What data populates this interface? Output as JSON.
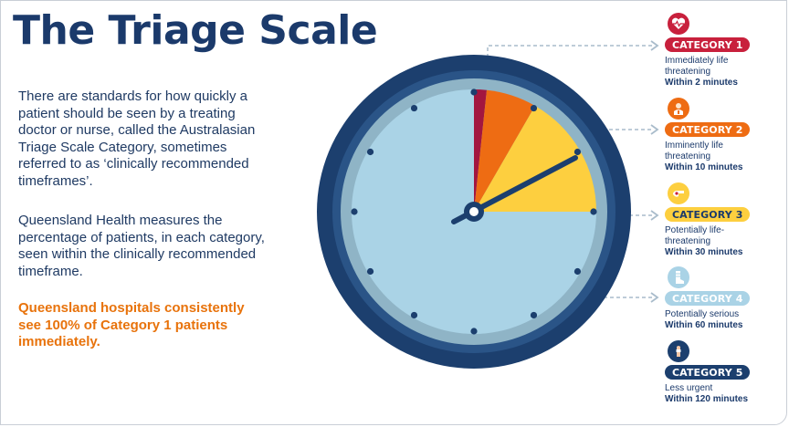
{
  "title": "The Triage Scale",
  "intro": {
    "paragraph1": "There are standards for how quickly a patient should be seen by a treating doctor or nurse, called the Australasian Triage Scale Category, sometimes referred to as ‘clinically recommended timeframes’.",
    "paragraph2": "Queensland Health measures the percentage of patients, in each category, seen within the clinically recommended timeframe.",
    "highlight": "Queensland hospitals consistently see 100% of Category 1 patients immediately."
  },
  "clock": {
    "total_minutes": 120,
    "segments": [
      {
        "category": 1,
        "minutes": 2,
        "color": "#a3163f"
      },
      {
        "category": 2,
        "minutes": 10,
        "color": "#ee6c13"
      },
      {
        "category": 3,
        "minutes": 30,
        "color": "#fdcf3f"
      },
      {
        "category": 4,
        "minutes": 60,
        "color": "#aad3e6"
      },
      {
        "category": 5,
        "minutes": 120,
        "color": "#aad3e6"
      }
    ],
    "rim_color": "#1c3f6e",
    "shadow_color": "#8fb4c6"
  },
  "categories": [
    {
      "label": "CATEGORY 1",
      "description": "Immediately life threatening",
      "time": "Within 2 minutes",
      "color": "#c8203c",
      "icon": "heart-monitor-icon"
    },
    {
      "label": "CATEGORY 2",
      "description": "Imminently life threatening",
      "time": "Within 10 minutes",
      "color": "#ee6c13",
      "icon": "paramedic-icon"
    },
    {
      "label": "CATEGORY 3",
      "description": "Potentially life-threatening",
      "time": "Within 30 minutes",
      "color": "#fdcf3f",
      "text_color": "#1b3a6b",
      "icon": "injured-hand-icon"
    },
    {
      "label": "CATEGORY 4",
      "description": "Potentially serious",
      "time": "Within 60 minutes",
      "color": "#aad3e6",
      "icon": "bandaged-foot-icon"
    },
    {
      "label": "CATEGORY 5",
      "description": "Less urgent",
      "time": "Within 120 minutes",
      "color": "#1c3f6e",
      "icon": "finger-bandage-icon"
    }
  ]
}
